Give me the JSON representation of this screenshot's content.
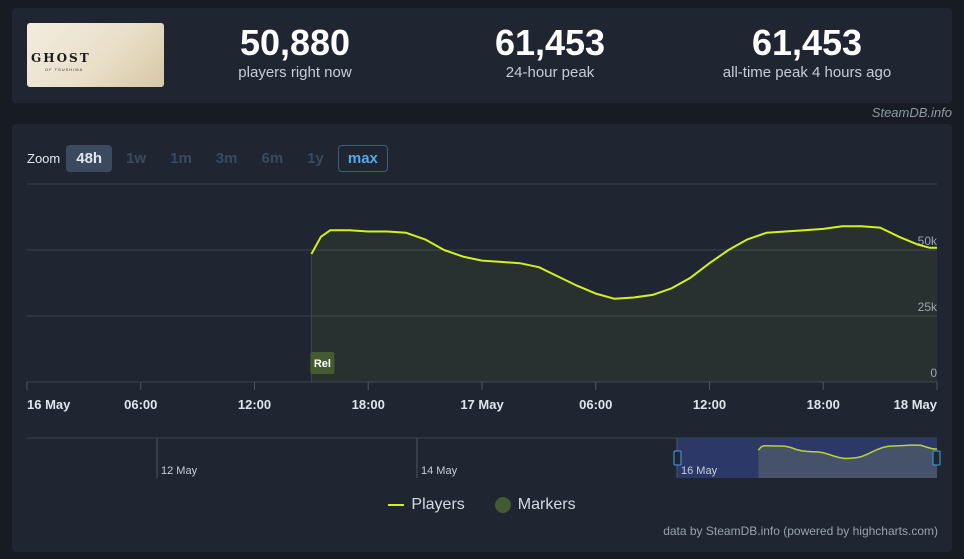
{
  "game": {
    "logo_text": "GHOST",
    "logo_sub": "OF TSUSHIMA"
  },
  "stats": [
    {
      "value": "50,880",
      "label": "players right now"
    },
    {
      "value": "61,453",
      "label": "24-hour peak"
    },
    {
      "value": "61,453",
      "label": "all-time peak 4 hours ago"
    }
  ],
  "credit_top": "SteamDB.info",
  "zoom": {
    "label": "Zoom",
    "options": [
      "48h",
      "1w",
      "1m",
      "3m",
      "6m",
      "1y",
      "max"
    ],
    "active": "48h",
    "outlined": "max"
  },
  "legend": {
    "players": "Players",
    "markers": "Markers"
  },
  "credit_bottom": "data by SteamDB.info (powered by highcharts.com)",
  "colors": {
    "line": "#d0f21f",
    "marker": "#445a30",
    "navigator_selection": "#2f3d72",
    "grid": "#3a4350"
  },
  "chart_data": {
    "type": "area",
    "series": [
      {
        "name": "Players",
        "x_hours": [
          15,
          15.5,
          16,
          17,
          18,
          19,
          20,
          21,
          22,
          23,
          24,
          25,
          26,
          27,
          28,
          29,
          30,
          31,
          32,
          33,
          34,
          35,
          36,
          37,
          38,
          39,
          40,
          41,
          42,
          43,
          44,
          45,
          46,
          47,
          47.6,
          48
        ],
        "values": [
          48500,
          55000,
          57500,
          57500,
          57000,
          57000,
          56500,
          54000,
          50000,
          47500,
          46000,
          45500,
          45000,
          43500,
          40000,
          36500,
          33500,
          31500,
          32000,
          33000,
          35500,
          39500,
          45000,
          50000,
          54000,
          56500,
          57000,
          57500,
          58000,
          59000,
          59000,
          58500,
          55000,
          52000,
          50880,
          50880
        ]
      }
    ],
    "markers": [
      {
        "label": "Rel",
        "x_hours": 15
      }
    ],
    "x_ticks": [
      {
        "h": 0,
        "label": "16 May"
      },
      {
        "h": 6,
        "label": "06:00"
      },
      {
        "h": 12,
        "label": "12:00"
      },
      {
        "h": 18,
        "label": "18:00"
      },
      {
        "h": 24,
        "label": "17 May"
      },
      {
        "h": 30,
        "label": "06:00"
      },
      {
        "h": 36,
        "label": "12:00"
      },
      {
        "h": 42,
        "label": "18:00"
      },
      {
        "h": 48,
        "label": "18 May"
      }
    ],
    "y_ticks": [
      {
        "v": 0,
        "label": "0"
      },
      {
        "v": 25000,
        "label": "25k"
      },
      {
        "v": 50000,
        "label": "50k"
      },
      {
        "v": 75000,
        "label": ""
      }
    ],
    "xlim": [
      0,
      48
    ],
    "ylim": [
      0,
      75000
    ],
    "grid": true,
    "navigator": {
      "labels": [
        "12 May",
        "14 May",
        "16 May"
      ],
      "label_days": [
        12,
        14,
        16
      ],
      "range_days": [
        11,
        18
      ],
      "selected_days": [
        16,
        18
      ]
    }
  }
}
